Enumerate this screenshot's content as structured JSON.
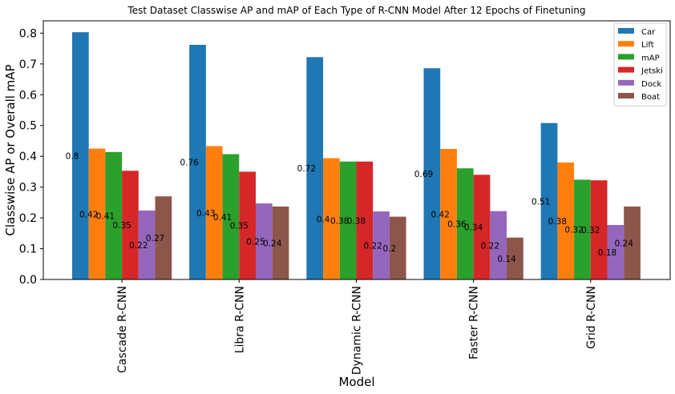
{
  "chart_data": {
    "type": "bar",
    "title": "Test Dataset Classwise AP and mAP of Each Type of R-CNN Model After 12 Epochs of Finetuning",
    "xlabel": "Model",
    "ylabel": "Classwise AP or Overall mAP",
    "categories": [
      "Cascade R-CNN",
      "Libra R-CNN",
      "Dynamic R-CNN",
      "Faster R-CNN",
      "Grid R-CNN"
    ],
    "ylim": [
      0,
      0.84
    ],
    "yticks": [
      "0.0",
      "0.1",
      "0.2",
      "0.3",
      "0.4",
      "0.5",
      "0.6",
      "0.7",
      "0.8"
    ],
    "legend_position": "top-right",
    "grid": false,
    "series": [
      {
        "name": "Car",
        "color": "#1f77b4",
        "values": [
          0.803,
          0.762,
          0.722,
          0.686,
          0.508
        ],
        "labels": [
          "0.8",
          "0.76",
          "0.72",
          "0.69",
          "0.51"
        ]
      },
      {
        "name": "Lift",
        "color": "#ff7f0e",
        "values": [
          0.425,
          0.433,
          0.394,
          0.424,
          0.38
        ],
        "labels": [
          "0.42",
          "0.43",
          "0.4",
          "0.42",
          "0.38"
        ]
      },
      {
        "name": "mAP",
        "color": "#2ca02c",
        "values": [
          0.414,
          0.407,
          0.383,
          0.361,
          0.324
        ],
        "labels": [
          "0.41",
          "0.41",
          "0.38",
          "0.36",
          "0.32"
        ]
      },
      {
        "name": "Jetski",
        "color": "#d62728",
        "values": [
          0.353,
          0.35,
          0.383,
          0.34,
          0.322
        ],
        "labels": [
          "0.35",
          "0.35",
          "0.38",
          "0.34",
          "0.32"
        ]
      },
      {
        "name": "Dock",
        "color": "#9467bd",
        "values": [
          0.224,
          0.247,
          0.221,
          0.222,
          0.177
        ],
        "labels": [
          "0.22",
          "0.25",
          "0.22",
          "0.22",
          "0.18"
        ]
      },
      {
        "name": "Boat",
        "color": "#8c564b",
        "values": [
          0.27,
          0.237,
          0.204,
          0.136,
          0.237
        ],
        "labels": [
          "0.27",
          "0.24",
          "0.2",
          "0.14",
          "0.24"
        ]
      }
    ]
  }
}
